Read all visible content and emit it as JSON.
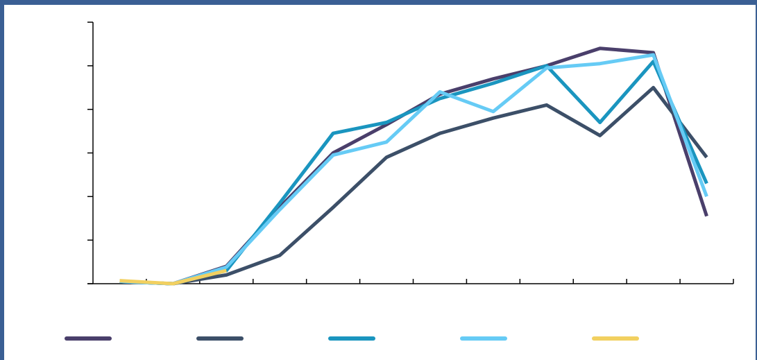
{
  "colors": {
    "frame": "#3a5f94",
    "axis": "#000000",
    "background": "#ffffff"
  },
  "chart_data": {
    "type": "line",
    "title": "",
    "xlabel": "",
    "ylabel": "",
    "ylim": [
      0,
      6
    ],
    "y_tick_count": 6,
    "x_category_count": 12,
    "x_points": [
      0.5,
      1.5,
      2.5,
      3.5,
      4.5,
      5.5,
      6.5,
      7.5,
      8.5,
      9.5,
      10.5,
      11.5
    ],
    "legend_position": "bottom",
    "series": [
      {
        "color": "#4a3f6b",
        "x": [
          0.5,
          1.5,
          2.5,
          3.5,
          4.5,
          5.5,
          6.5,
          7.5,
          8.5,
          9.5,
          10.5,
          11.5
        ],
        "values": [
          0.05,
          0.0,
          0.4,
          1.75,
          3.0,
          3.65,
          4.35,
          4.7,
          5.0,
          5.4,
          5.3,
          1.55
        ]
      },
      {
        "color": "#3c4f68",
        "x": [
          0.5,
          1.5,
          2.5,
          3.5,
          4.5,
          5.5,
          6.5,
          7.5,
          8.5,
          9.5,
          10.5,
          11.5
        ],
        "values": [
          0.05,
          0.0,
          0.2,
          0.65,
          1.75,
          2.9,
          3.45,
          3.8,
          4.1,
          3.4,
          4.5,
          2.9
        ]
      },
      {
        "color": "#1a95bf",
        "x": [
          0.5,
          1.5,
          2.5,
          3.5,
          4.5,
          5.5,
          6.5,
          7.5,
          8.5,
          9.5,
          10.5,
          11.5
        ],
        "values": [
          0.05,
          0.0,
          0.3,
          1.85,
          3.45,
          3.7,
          4.25,
          4.6,
          5.0,
          3.7,
          5.1,
          2.3
        ]
      },
      {
        "color": "#66cbf5",
        "x": [
          0.5,
          1.5,
          2.5,
          3.5,
          4.5,
          5.5,
          6.5,
          7.5,
          8.5,
          9.5,
          10.5,
          11.5
        ],
        "values": [
          0.05,
          0.0,
          0.38,
          1.7,
          2.95,
          3.25,
          4.4,
          3.95,
          4.95,
          5.05,
          5.25,
          2.0
        ]
      },
      {
        "color": "#f2d060",
        "x": [
          0.5,
          1.5,
          2.5
        ],
        "values": [
          0.07,
          0.0,
          0.3
        ]
      }
    ]
  }
}
